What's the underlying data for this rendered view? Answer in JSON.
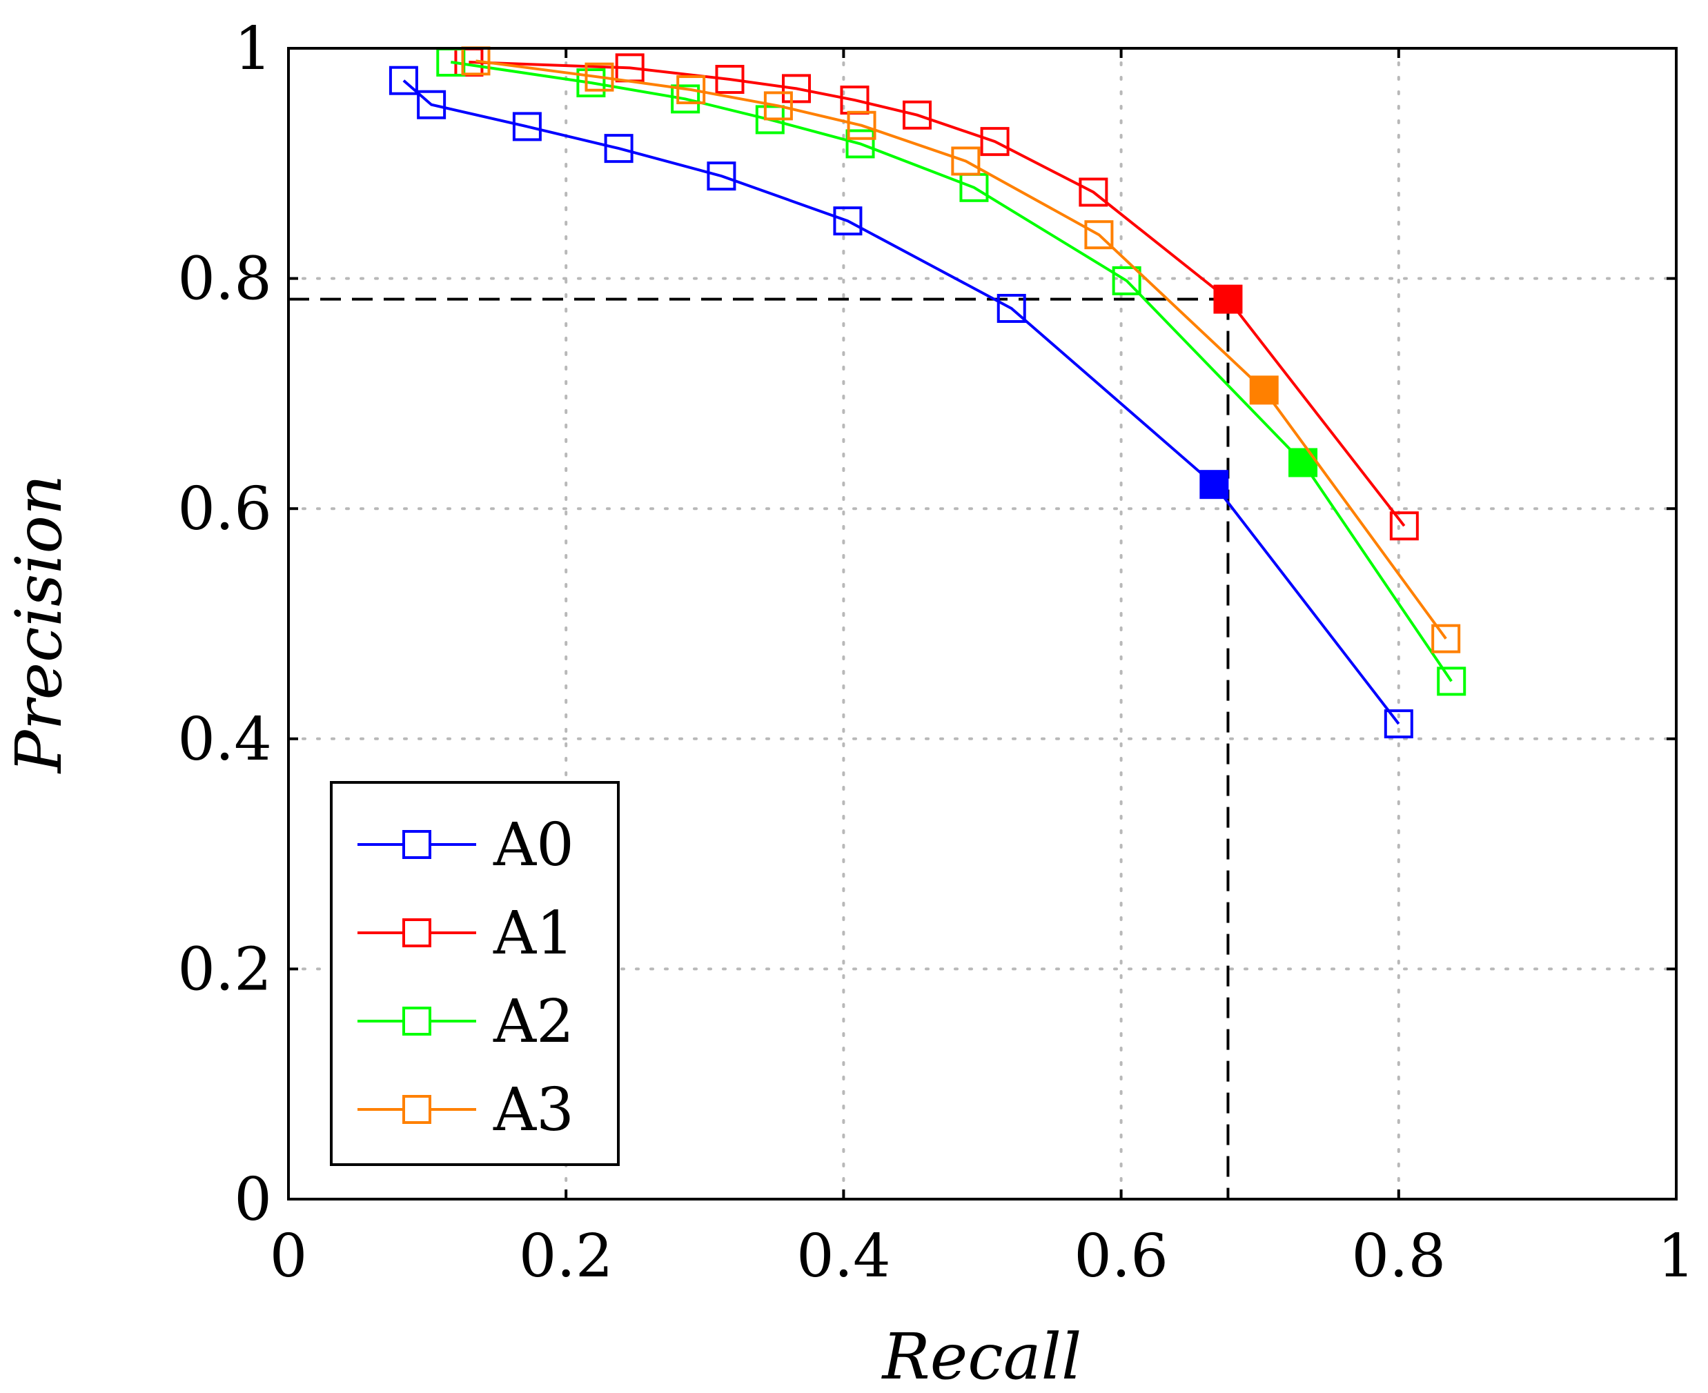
{
  "chart_data": {
    "type": "line",
    "title": "",
    "xlabel": "Recall",
    "ylabel": "Precision",
    "xlim": [
      0,
      1
    ],
    "ylim": [
      0,
      1
    ],
    "x_ticks": [
      "0",
      "0.2",
      "0.4",
      "0.6",
      "0.8",
      "1"
    ],
    "y_ticks": [
      "0",
      "0.2",
      "0.4",
      "0.6",
      "0.8",
      "1"
    ],
    "grid": true,
    "legend_position": "bottom-left",
    "reference_point": {
      "x": 0.677,
      "y": 0.782
    },
    "series": [
      {
        "name": "A0",
        "color": "#0000ff",
        "points": [
          [
            0.083,
            0.972
          ],
          [
            0.103,
            0.951
          ],
          [
            0.172,
            0.932
          ],
          [
            0.238,
            0.913
          ],
          [
            0.312,
            0.889
          ],
          [
            0.403,
            0.85
          ],
          [
            0.521,
            0.774
          ],
          [
            0.667,
            0.621
          ],
          [
            0.8,
            0.413
          ]
        ],
        "highlight_index": 7
      },
      {
        "name": "A1",
        "color": "#ff0000",
        "points": [
          [
            0.13,
            0.988
          ],
          [
            0.246,
            0.983
          ],
          [
            0.318,
            0.973
          ],
          [
            0.366,
            0.965
          ],
          [
            0.408,
            0.955
          ],
          [
            0.453,
            0.942
          ],
          [
            0.509,
            0.919
          ],
          [
            0.58,
            0.875
          ],
          [
            0.677,
            0.782
          ],
          [
            0.804,
            0.585
          ]
        ],
        "highlight_index": 8
      },
      {
        "name": "A2",
        "color": "#00ff00",
        "points": [
          [
            0.117,
            0.988
          ],
          [
            0.218,
            0.97
          ],
          [
            0.286,
            0.956
          ],
          [
            0.347,
            0.938
          ],
          [
            0.412,
            0.917
          ],
          [
            0.494,
            0.879
          ],
          [
            0.604,
            0.798
          ],
          [
            0.731,
            0.64
          ],
          [
            0.838,
            0.45
          ]
        ],
        "highlight_index": 7
      },
      {
        "name": "A3",
        "color": "#ff8000",
        "points": [
          [
            0.135,
            0.989
          ],
          [
            0.224,
            0.975
          ],
          [
            0.29,
            0.964
          ],
          [
            0.353,
            0.95
          ],
          [
            0.413,
            0.933
          ],
          [
            0.488,
            0.902
          ],
          [
            0.584,
            0.838
          ],
          [
            0.703,
            0.703
          ],
          [
            0.834,
            0.487
          ]
        ],
        "highlight_index": 7
      }
    ]
  }
}
